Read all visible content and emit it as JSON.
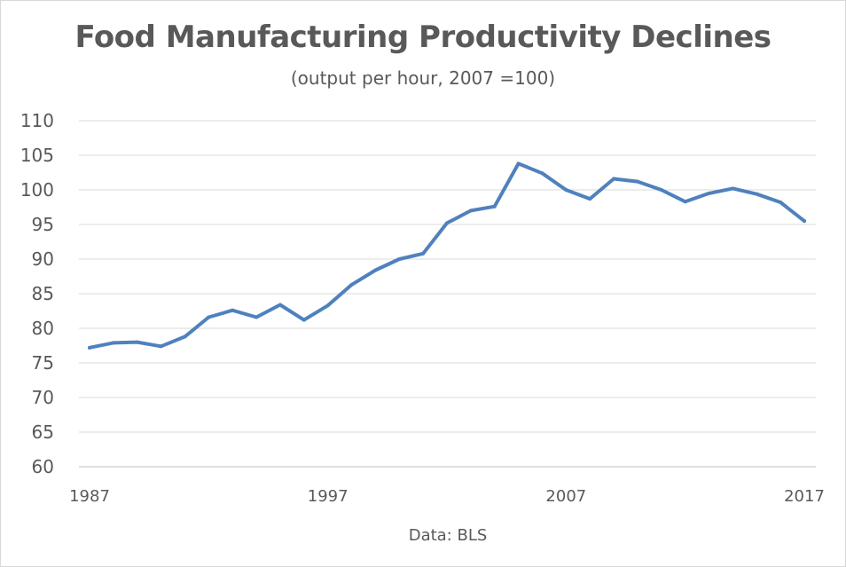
{
  "chart_data": {
    "type": "line",
    "title": "Food Manufacturing Productivity Declines",
    "subtitle": "(output per hour, 2007 =100)",
    "source_note": "Data: BLS",
    "x_tick_labels": [
      "1987",
      "1997",
      "2007",
      "2017"
    ],
    "y_tick_labels": [
      "60",
      "65",
      "70",
      "75",
      "80",
      "85",
      "90",
      "95",
      "100",
      "105",
      "110"
    ],
    "ylim": [
      60,
      110
    ],
    "xlim": [
      1987,
      2017
    ],
    "grid": "horizontal",
    "line_color": "#4f81bd",
    "series": [
      {
        "x": [
          1987,
          1988,
          1989,
          1990,
          1991,
          1992,
          1993,
          1994,
          1995,
          1996,
          1997,
          1998,
          1999,
          2000,
          2001,
          2002,
          2003,
          2004,
          2005,
          2006,
          2007,
          2008,
          2009,
          2010,
          2011,
          2012,
          2013,
          2014,
          2015,
          2016,
          2017
        ],
        "values": [
          77.2,
          77.9,
          78.0,
          77.4,
          78.8,
          81.6,
          82.6,
          81.6,
          83.4,
          81.2,
          83.3,
          86.3,
          88.4,
          90.0,
          90.8,
          95.2,
          97.0,
          97.6,
          103.8,
          102.4,
          100.0,
          98.7,
          101.6,
          101.2,
          100.0,
          98.3,
          99.5,
          100.2,
          99.4,
          98.2,
          95.5
        ]
      }
    ]
  }
}
